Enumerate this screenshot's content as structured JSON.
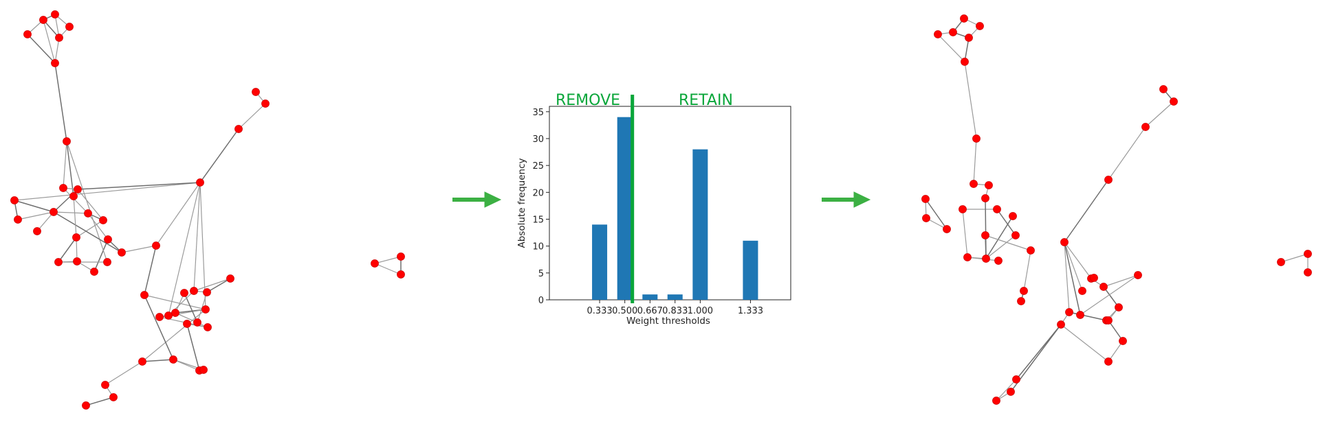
{
  "chart_data": {
    "type": "bar",
    "categories": [
      "0.333",
      "0.500",
      "0.667",
      "0.833",
      "1.000",
      "1.333"
    ],
    "values": [
      14,
      34,
      1,
      1,
      28,
      11
    ],
    "xlabel": "Weight thresholds",
    "ylabel": "Absolute frequency",
    "ylim": [
      0,
      36
    ],
    "yticks": [
      0,
      5,
      10,
      15,
      20,
      25,
      30,
      35
    ],
    "threshold": 0.5,
    "annotations": {
      "left": "REMOVE",
      "right": "RETAIN"
    },
    "colors": {
      "bar": "#1f77b4",
      "threshold_line": "#0aa63a",
      "annotation": "#0aa63a"
    }
  },
  "graphs": {
    "node_color": "#ff0000",
    "before": {
      "node_count": 58
    },
    "after": {
      "node_count": 58
    }
  },
  "arrows": {
    "color": "#3cb043",
    "count": 2
  }
}
